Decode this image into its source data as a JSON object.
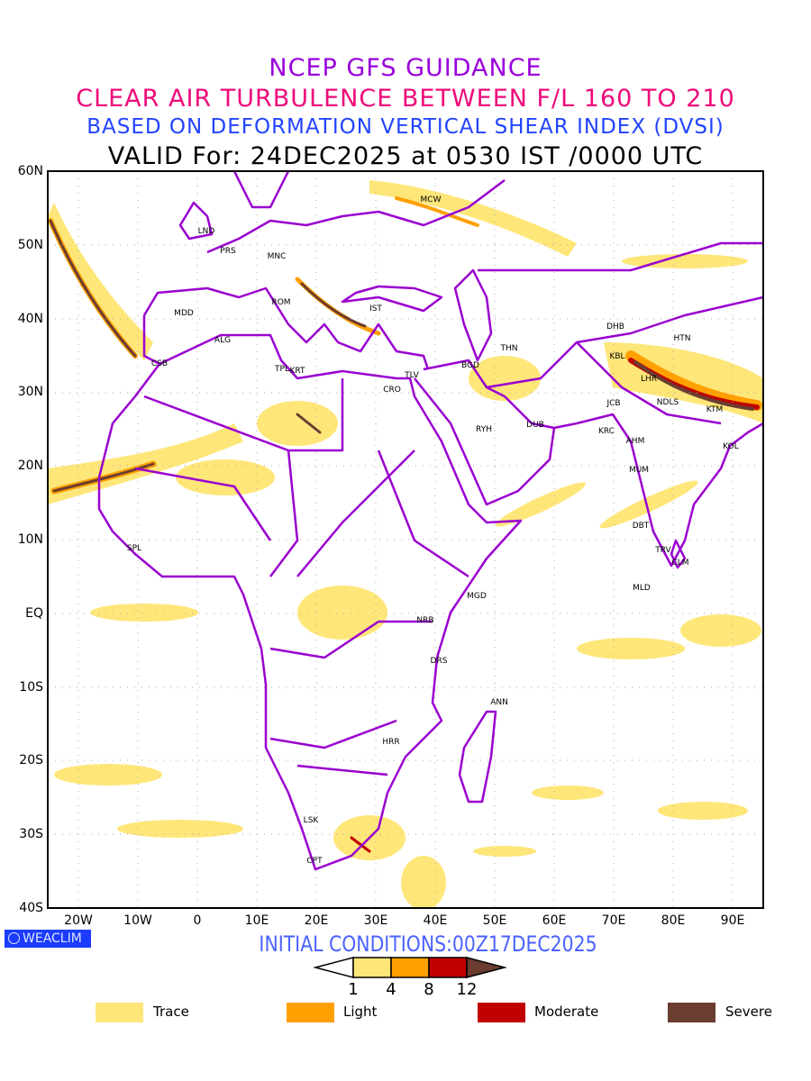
{
  "title": {
    "line1": "NCEP GFS GUIDANCE",
    "line2": "CLEAR AIR TURBULENCE BETWEEN F/L 160 TO 210",
    "line3": "BASED ON DEFORMATION VERTICAL SHEAR INDEX (DVSI)",
    "line4": "VALID For: 24DEC2025 at 0530 IST /0000 UTC"
  },
  "axes": {
    "lat_labels": [
      "60N",
      "50N",
      "40N",
      "30N",
      "20N",
      "10N",
      "EQ",
      "10S",
      "20S",
      "30S",
      "40S"
    ],
    "lon_labels": [
      "20W",
      "10W",
      "0",
      "10E",
      "20E",
      "30E",
      "40E",
      "50E",
      "60E",
      "70E",
      "80E",
      "90E"
    ]
  },
  "cities": [
    "MCW",
    "LND",
    "PRS",
    "MNC",
    "ROM",
    "IST",
    "MDD",
    "ALG",
    "CSB",
    "TPL",
    "KRT",
    "TLV",
    "CRO",
    "BGD",
    "THN",
    "RYH",
    "DUB",
    "DHB",
    "HTN",
    "KBL",
    "LHR",
    "JCB",
    "NDLS",
    "KTM",
    "KRC",
    "AHM",
    "KOL",
    "MUM",
    "DBT",
    "TRV",
    "CLM",
    "MLD",
    "SPL",
    "MGD",
    "NRB",
    "DRS",
    "ANN",
    "HRR",
    "LSK",
    "CPT"
  ],
  "logo": "WEACLIM",
  "initial_conditions": "INITIAL CONDITIONS:00Z17DEC2025",
  "colorbar": {
    "ticks": [
      "1",
      "4",
      "8",
      "12"
    ],
    "colors": [
      "#ffe679",
      "#ffa000",
      "#c00000",
      "#6b3c30"
    ]
  },
  "legend": [
    {
      "label": "Trace",
      "color": "#ffe679"
    },
    {
      "label": "Light",
      "color": "#ffa000"
    },
    {
      "label": "Moderate",
      "color": "#c00000"
    },
    {
      "label": "Severe",
      "color": "#6b3c30"
    }
  ],
  "colors": {
    "borders": "#9a00d0",
    "trace": "#ffe679"
  }
}
